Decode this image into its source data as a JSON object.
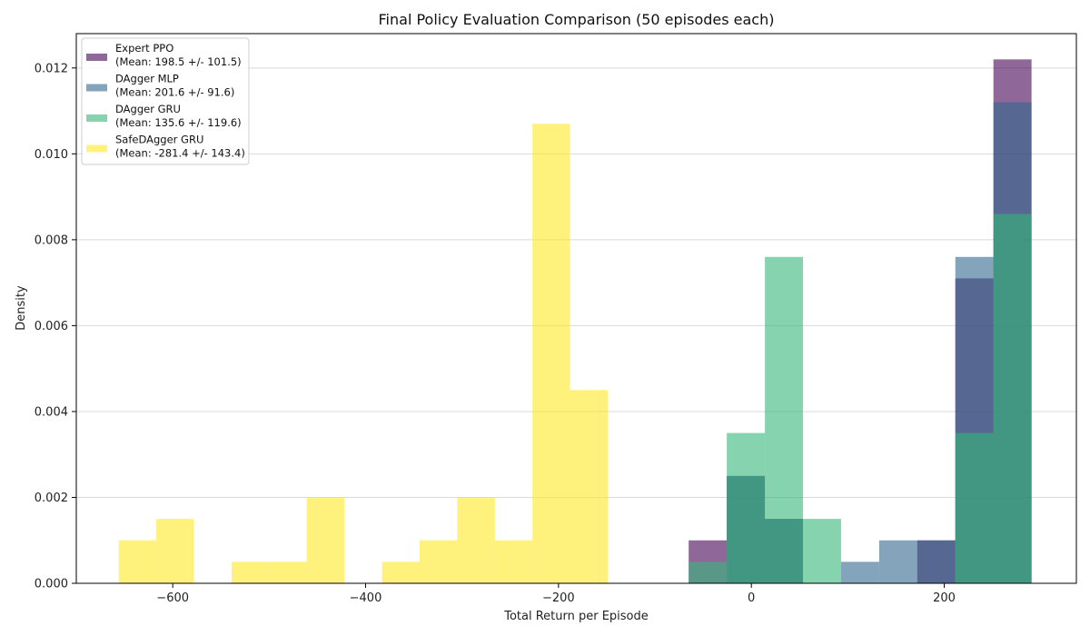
{
  "chart_data": {
    "type": "bar",
    "subtype": "histogram",
    "title": "Final Policy Evaluation Comparison (50 episodes each)",
    "xlabel": "Total Return per Episode",
    "ylabel": "Density",
    "xlim": [
      -700,
      337
    ],
    "ylim": [
      0,
      0.0128
    ],
    "bin_width": 39.5,
    "x_ticks": [
      -600,
      -400,
      -200,
      0,
      200
    ],
    "x_tick_labels": [
      "−600",
      "−400",
      "−200",
      "0",
      "200"
    ],
    "y_ticks": [
      0,
      0.002,
      0.004,
      0.006,
      0.008,
      0.01,
      0.012
    ],
    "y_tick_labels": [
      "0.000",
      "0.002",
      "0.004",
      "0.006",
      "0.008",
      "0.010",
      "0.012"
    ],
    "grid": "horizontal",
    "legend_position": "top-left",
    "alpha": 0.6,
    "series": [
      {
        "name": "Expert PPO",
        "legend_label_line1": "Expert PPO",
        "legend_label_line2": "(Mean: 198.5 +/- 101.5)",
        "color": "#440154",
        "bins": [
          {
            "x0": -65,
            "x1": -25.5,
            "value": 0.001
          },
          {
            "x0": -25.5,
            "x1": 14,
            "value": 0.0025
          },
          {
            "x0": 14,
            "x1": 53.5,
            "value": 0.0015
          },
          {
            "x0": 172,
            "x1": 211.5,
            "value": 0.001
          },
          {
            "x0": 211.5,
            "x1": 251,
            "value": 0.0071
          },
          {
            "x0": 251,
            "x1": 290.5,
            "value": 0.0122
          }
        ]
      },
      {
        "name": "DAgger MLP",
        "legend_label_line1": "DAgger MLP",
        "legend_label_line2": "(Mean: 201.6 +/- 91.6)",
        "color": "#31688e",
        "bins": [
          {
            "x0": -25.5,
            "x1": 14,
            "value": 0.0025
          },
          {
            "x0": 14,
            "x1": 53.5,
            "value": 0.0015
          },
          {
            "x0": 93,
            "x1": 132.5,
            "value": 0.0005
          },
          {
            "x0": 132.5,
            "x1": 172,
            "value": 0.001
          },
          {
            "x0": 172,
            "x1": 211.5,
            "value": 0.001
          },
          {
            "x0": 211.5,
            "x1": 251,
            "value": 0.0076
          },
          {
            "x0": 251,
            "x1": 290.5,
            "value": 0.0112
          }
        ]
      },
      {
        "name": "DAgger GRU",
        "legend_label_line1": "DAgger GRU",
        "legend_label_line2": "(Mean: 135.6 +/- 119.6)",
        "color": "#35b779",
        "bins": [
          {
            "x0": -65,
            "x1": -25.5,
            "value": 0.0005
          },
          {
            "x0": -25.5,
            "x1": 14,
            "value": 0.0035
          },
          {
            "x0": 14,
            "x1": 53.5,
            "value": 0.0076
          },
          {
            "x0": 53.5,
            "x1": 93,
            "value": 0.0015
          },
          {
            "x0": 211.5,
            "x1": 251,
            "value": 0.0035
          },
          {
            "x0": 251,
            "x1": 290.5,
            "value": 0.0086
          }
        ]
      },
      {
        "name": "SafeDAgger GRU",
        "legend_label_line1": "SafeDAgger GRU",
        "legend_label_line2": "(Mean: -281.4 +/- 143.4)",
        "color": "#fde725",
        "bins": [
          {
            "x0": -656,
            "x1": -617,
            "value": 0.001
          },
          {
            "x0": -617,
            "x1": -578,
            "value": 0.0015
          },
          {
            "x0": -539,
            "x1": -500,
            "value": 0.0005
          },
          {
            "x0": -500,
            "x1": -461,
            "value": 0.0005
          },
          {
            "x0": -461,
            "x1": -422,
            "value": 0.002
          },
          {
            "x0": -383,
            "x1": -344,
            "value": 0.0005
          },
          {
            "x0": -344,
            "x1": -305,
            "value": 0.001
          },
          {
            "x0": -305,
            "x1": -266,
            "value": 0.002
          },
          {
            "x0": -266,
            "x1": -227,
            "value": 0.001
          },
          {
            "x0": -227,
            "x1": -188,
            "value": 0.0107
          },
          {
            "x0": -188,
            "x1": -149,
            "value": 0.0045
          }
        ]
      }
    ]
  }
}
